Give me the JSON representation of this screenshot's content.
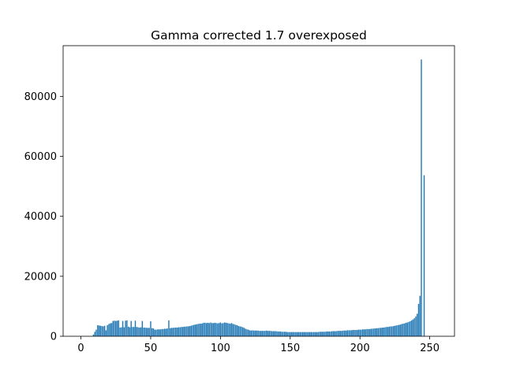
{
  "chart_data": {
    "type": "bar",
    "title": "Gamma corrected 1.7 overexposed",
    "xlabel": "",
    "ylabel": "",
    "xlim": [
      -12.75,
      267.75
    ],
    "ylim": [
      0,
      96900
    ],
    "xticks": [
      0,
      50,
      100,
      150,
      200,
      250
    ],
    "yticks": [
      0,
      20000,
      40000,
      60000,
      80000
    ],
    "grid": false,
    "legend": "none",
    "bar_color": "#1f77b4",
    "series": [
      {
        "x_start": 0,
        "values": [
          0,
          0,
          0,
          0,
          0,
          0,
          0,
          0,
          0,
          600,
          1500,
          2200,
          3700,
          3600,
          3500,
          3400,
          3300,
          3500,
          2000,
          3700,
          4100,
          4300,
          4400,
          5100,
          5200,
          5100,
          5200,
          5300,
          2900,
          3000,
          5100,
          3000,
          5200,
          5300,
          3200,
          3000,
          5100,
          3100,
          3100,
          5200,
          3100,
          3000,
          2900,
          3000,
          5100,
          2900,
          2900,
          2800,
          2800,
          2800,
          5000,
          2700,
          2600,
          2200,
          2200,
          2300,
          2300,
          2300,
          2400,
          2400,
          2500,
          2500,
          2600,
          5300,
          2700,
          2800,
          2800,
          2900,
          2900,
          2900,
          3000,
          3000,
          3100,
          3100,
          3200,
          3200,
          3300,
          3300,
          3400,
          3500,
          3700,
          3800,
          3900,
          4000,
          4100,
          4200,
          4200,
          4300,
          4500,
          4500,
          4400,
          4500,
          4400,
          4600,
          4400,
          4400,
          4500,
          4400,
          4300,
          4400,
          4600,
          4300,
          4400,
          4600,
          4500,
          4400,
          4300,
          4200,
          4400,
          4100,
          4000,
          3800,
          3700,
          3400,
          3300,
          3200,
          3000,
          2800,
          2500,
          2300,
          2200,
          2000,
          1900,
          2000,
          1900,
          1900,
          1900,
          1900,
          1800,
          1800,
          1800,
          1800,
          1800,
          1900,
          1800,
          1800,
          1800,
          1700,
          1700,
          1700,
          1700,
          1600,
          1600,
          1600,
          1500,
          1500,
          1500,
          1500,
          1400,
          1400,
          1400,
          1400,
          1400,
          1400,
          1400,
          1400,
          1400,
          1400,
          1400,
          1400,
          1400,
          1400,
          1400,
          1400,
          1400,
          1400,
          1400,
          1400,
          1400,
          1400,
          1400,
          1500,
          1500,
          1500,
          1500,
          1500,
          1600,
          1600,
          1600,
          1600,
          1700,
          1700,
          1700,
          1700,
          1800,
          1800,
          1800,
          1800,
          1900,
          1900,
          1900,
          2000,
          2000,
          2000,
          2000,
          2100,
          2100,
          2100,
          2100,
          2200,
          2200,
          2200,
          2300,
          2300,
          2300,
          2400,
          2400,
          2400,
          2500,
          2500,
          2600,
          2600,
          2700,
          2700,
          2800,
          2800,
          2900,
          2900,
          3000,
          3100,
          3100,
          3200,
          3300,
          3300,
          3400,
          3500,
          3600,
          3700,
          3800,
          3900,
          4100,
          4200,
          4300,
          4500,
          4600,
          4800,
          5000,
          5300,
          5600,
          6000,
          6600,
          7500,
          10800,
          13500,
          92300,
          0,
          53700
        ]
      }
    ]
  }
}
